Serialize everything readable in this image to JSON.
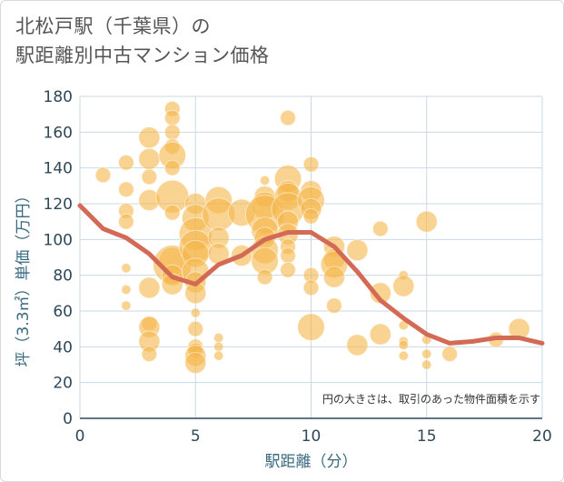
{
  "title_line1": "北松戸駅（千葉県）の",
  "title_line2": "駅距離別中古マンション価格",
  "chart_data": {
    "type": "scatter",
    "xlabel": "駅距離（分）",
    "ylabel": "坪（3.3㎡）単価（万円）",
    "xlim": [
      0,
      20
    ],
    "ylim": [
      0,
      180
    ],
    "x_ticks": [
      "0",
      "5",
      "10",
      "15",
      "20"
    ],
    "y_ticks": [
      "0",
      "20",
      "40",
      "60",
      "80",
      "100",
      "120",
      "140",
      "160",
      "180"
    ],
    "grid": true,
    "note": "円の大きさは、取引のあった物件面積を示す",
    "colors": {
      "bubble": "#f5b54a",
      "trend": "#d36a55",
      "grid": "#c9d9e6"
    },
    "points": [
      {
        "x": 1,
        "y": 136,
        "s": 2
      },
      {
        "x": 2,
        "y": 143,
        "s": 2
      },
      {
        "x": 2,
        "y": 128,
        "s": 2
      },
      {
        "x": 2,
        "y": 116,
        "s": 2
      },
      {
        "x": 2,
        "y": 110,
        "s": 2
      },
      {
        "x": 2,
        "y": 84,
        "s": 1
      },
      {
        "x": 2,
        "y": 72,
        "s": 1
      },
      {
        "x": 2,
        "y": 63,
        "s": 1
      },
      {
        "x": 3,
        "y": 157,
        "s": 3
      },
      {
        "x": 3,
        "y": 145,
        "s": 3
      },
      {
        "x": 3,
        "y": 135,
        "s": 2
      },
      {
        "x": 3,
        "y": 122,
        "s": 3
      },
      {
        "x": 3,
        "y": 73,
        "s": 3
      },
      {
        "x": 3,
        "y": 53,
        "s": 2
      },
      {
        "x": 3,
        "y": 51,
        "s": 3
      },
      {
        "x": 3,
        "y": 43,
        "s": 3
      },
      {
        "x": 3,
        "y": 36,
        "s": 2
      },
      {
        "x": 4,
        "y": 173,
        "s": 2
      },
      {
        "x": 4,
        "y": 168,
        "s": 2
      },
      {
        "x": 4,
        "y": 160,
        "s": 2
      },
      {
        "x": 4,
        "y": 152,
        "s": 2
      },
      {
        "x": 4,
        "y": 147,
        "s": 4
      },
      {
        "x": 4,
        "y": 140,
        "s": 2
      },
      {
        "x": 4,
        "y": 124,
        "s": 5
      },
      {
        "x": 4,
        "y": 115,
        "s": 2
      },
      {
        "x": 4,
        "y": 88,
        "s": 4
      },
      {
        "x": 4,
        "y": 86,
        "s": 6
      },
      {
        "x": 4,
        "y": 80,
        "s": 3
      },
      {
        "x": 4,
        "y": 75,
        "s": 3
      },
      {
        "x": 5,
        "y": 120,
        "s": 3
      },
      {
        "x": 5,
        "y": 112,
        "s": 4
      },
      {
        "x": 5,
        "y": 103,
        "s": 5
      },
      {
        "x": 5,
        "y": 96,
        "s": 5
      },
      {
        "x": 5,
        "y": 92,
        "s": 4
      },
      {
        "x": 5,
        "y": 82,
        "s": 4
      },
      {
        "x": 5,
        "y": 76,
        "s": 3
      },
      {
        "x": 5,
        "y": 70,
        "s": 3
      },
      {
        "x": 5,
        "y": 59,
        "s": 1
      },
      {
        "x": 5,
        "y": 50,
        "s": 2
      },
      {
        "x": 5,
        "y": 40,
        "s": 2
      },
      {
        "x": 5,
        "y": 38,
        "s": 2
      },
      {
        "x": 5,
        "y": 35,
        "s": 3
      },
      {
        "x": 5,
        "y": 31,
        "s": 3
      },
      {
        "x": 6,
        "y": 122,
        "s": 4
      },
      {
        "x": 6,
        "y": 114,
        "s": 5
      },
      {
        "x": 6,
        "y": 101,
        "s": 3
      },
      {
        "x": 6,
        "y": 92,
        "s": 3
      },
      {
        "x": 6,
        "y": 45,
        "s": 1
      },
      {
        "x": 6,
        "y": 40,
        "s": 1
      },
      {
        "x": 6,
        "y": 35,
        "s": 1
      },
      {
        "x": 7,
        "y": 115,
        "s": 4
      },
      {
        "x": 7,
        "y": 91,
        "s": 3
      },
      {
        "x": 8,
        "y": 133,
        "s": 1
      },
      {
        "x": 8,
        "y": 124,
        "s": 3
      },
      {
        "x": 8,
        "y": 119,
        "s": 4
      },
      {
        "x": 8,
        "y": 114,
        "s": 6
      },
      {
        "x": 8,
        "y": 105,
        "s": 4
      },
      {
        "x": 8,
        "y": 101,
        "s": 3
      },
      {
        "x": 8,
        "y": 94,
        "s": 4
      },
      {
        "x": 8,
        "y": 88,
        "s": 4
      },
      {
        "x": 8,
        "y": 79,
        "s": 2
      },
      {
        "x": 9,
        "y": 168,
        "s": 2
      },
      {
        "x": 9,
        "y": 134,
        "s": 4
      },
      {
        "x": 9,
        "y": 127,
        "s": 3
      },
      {
        "x": 9,
        "y": 124,
        "s": 4
      },
      {
        "x": 9,
        "y": 117,
        "s": 5
      },
      {
        "x": 9,
        "y": 110,
        "s": 3
      },
      {
        "x": 9,
        "y": 103,
        "s": 3
      },
      {
        "x": 9,
        "y": 96,
        "s": 2
      },
      {
        "x": 9,
        "y": 91,
        "s": 2
      },
      {
        "x": 9,
        "y": 83,
        "s": 2
      },
      {
        "x": 10,
        "y": 142,
        "s": 2
      },
      {
        "x": 10,
        "y": 127,
        "s": 3
      },
      {
        "x": 10,
        "y": 122,
        "s": 4
      },
      {
        "x": 10,
        "y": 117,
        "s": 3
      },
      {
        "x": 10,
        "y": 113,
        "s": 2
      },
      {
        "x": 10,
        "y": 80,
        "s": 2
      },
      {
        "x": 10,
        "y": 73,
        "s": 2
      },
      {
        "x": 10,
        "y": 51,
        "s": 4
      },
      {
        "x": 11,
        "y": 96,
        "s": 3
      },
      {
        "x": 11,
        "y": 89,
        "s": 3
      },
      {
        "x": 11,
        "y": 86,
        "s": 4
      },
      {
        "x": 11,
        "y": 79,
        "s": 3
      },
      {
        "x": 11,
        "y": 63,
        "s": 2
      },
      {
        "x": 12,
        "y": 94,
        "s": 3
      },
      {
        "x": 12,
        "y": 41,
        "s": 3
      },
      {
        "x": 13,
        "y": 106,
        "s": 2
      },
      {
        "x": 13,
        "y": 70,
        "s": 3
      },
      {
        "x": 13,
        "y": 47,
        "s": 3
      },
      {
        "x": 14,
        "y": 80,
        "s": 1
      },
      {
        "x": 14,
        "y": 74,
        "s": 3
      },
      {
        "x": 14,
        "y": 52,
        "s": 1
      },
      {
        "x": 14,
        "y": 43,
        "s": 1
      },
      {
        "x": 14,
        "y": 41,
        "s": 1
      },
      {
        "x": 14,
        "y": 35,
        "s": 1
      },
      {
        "x": 15,
        "y": 110,
        "s": 3
      },
      {
        "x": 15,
        "y": 44,
        "s": 1
      },
      {
        "x": 15,
        "y": 36,
        "s": 1
      },
      {
        "x": 15,
        "y": 30,
        "s": 1
      },
      {
        "x": 16,
        "y": 36,
        "s": 2
      },
      {
        "x": 18,
        "y": 44,
        "s": 2
      },
      {
        "x": 19,
        "y": 50,
        "s": 3
      }
    ],
    "trend": {
      "x": [
        0,
        1,
        2,
        3,
        4,
        5,
        6,
        7,
        8,
        9,
        10,
        11,
        12,
        13,
        14,
        15,
        16,
        17,
        18,
        19,
        20
      ],
      "y": [
        119,
        106,
        101,
        92,
        79,
        75,
        86,
        91,
        100,
        104,
        104,
        96,
        82,
        66,
        56,
        47,
        42,
        43,
        45,
        45,
        42
      ]
    }
  }
}
